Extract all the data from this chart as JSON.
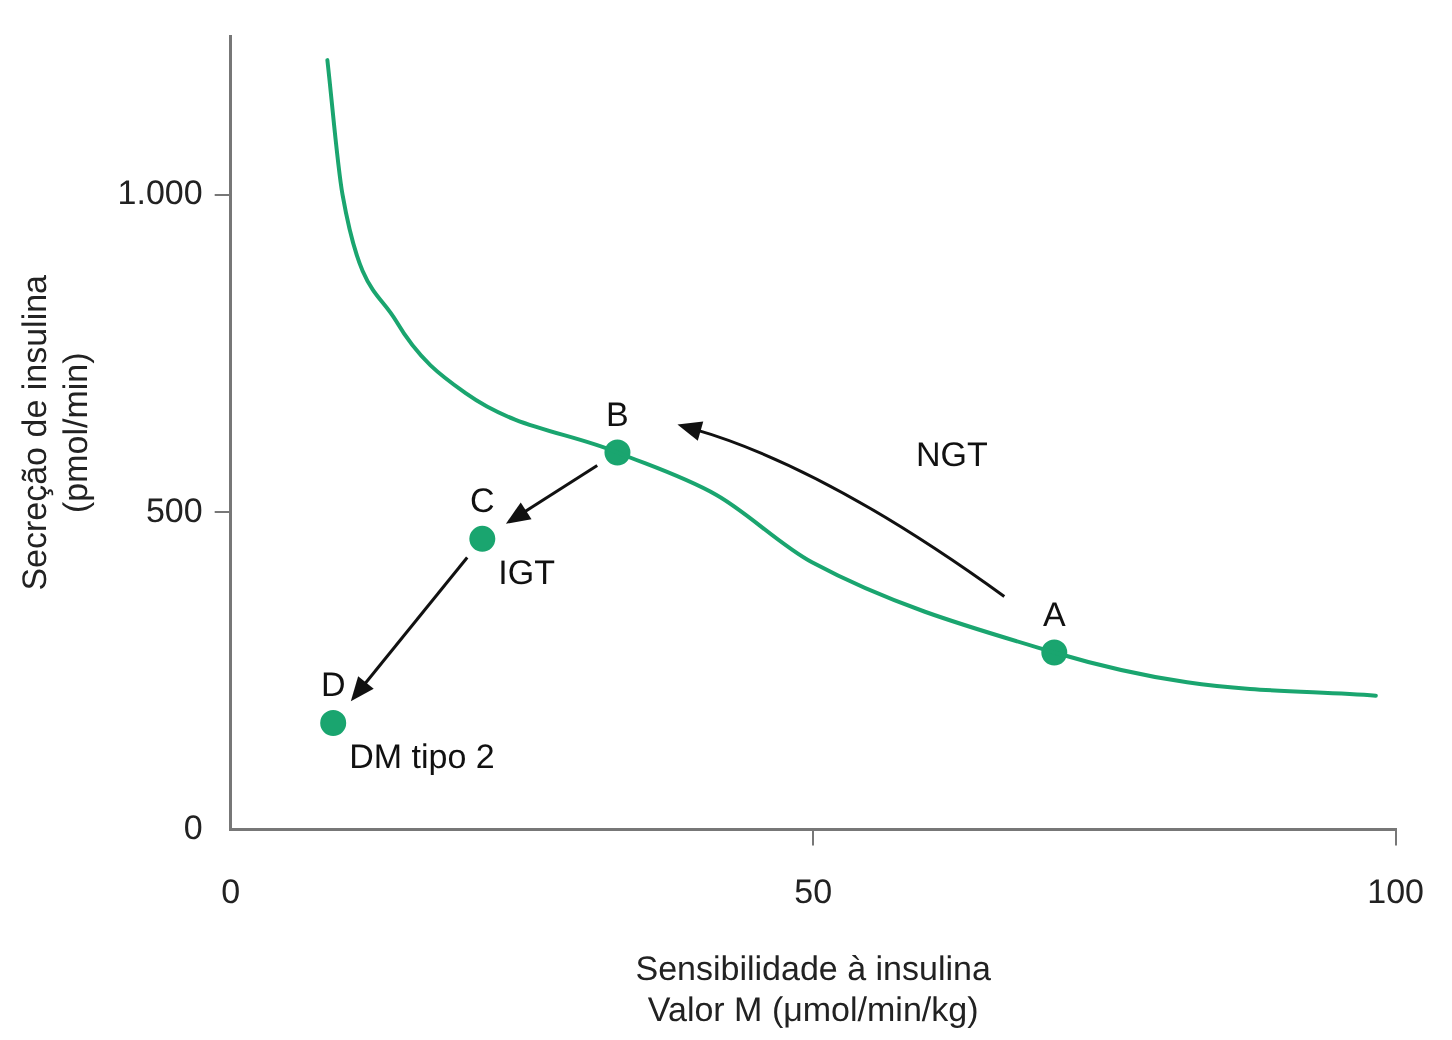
{
  "chart_data": {
    "type": "line",
    "xlabel": "Sensibilidade à insulina\nValor M (μmol/min/kg)",
    "ylabel": "Secreção de insulina\n(pmol/min)",
    "xlim": [
      0,
      100
    ],
    "ylim": [
      0,
      1250
    ],
    "xticks": [
      0,
      50,
      100
    ],
    "yticks": [
      0,
      500,
      {
        "value": 1000,
        "label": "1.000"
      }
    ],
    "grid": false,
    "legend": false,
    "line_style": "solid",
    "series": [
      {
        "color": "#1aa56f",
        "marker": "none",
        "x": [
          8.3,
          9.6,
          14.2,
          20.2,
          33.2,
          41.7,
          49.9,
          70.7,
          82.1,
          98.3
        ],
        "values": [
          1212,
          1000,
          801,
          687,
          594,
          527,
          421,
          279,
          232,
          211
        ]
      },
      {
        "type": "scatter",
        "marker": "circle",
        "color": "#1aa56f",
        "x": [
          70.7,
          33.2,
          21.6,
          8.8
        ],
        "values": [
          279,
          594,
          458,
          168
        ]
      }
    ],
    "annotations": [
      {
        "text": "A",
        "x": 70.7,
        "y": 279
      },
      {
        "text": "B",
        "x": 33.2,
        "y": 594
      },
      {
        "text": "C",
        "x": 21.6,
        "y": 458
      },
      {
        "text": "IGT",
        "x": 21.6,
        "y": 458
      },
      {
        "text": "D",
        "x": 8.8,
        "y": 168
      },
      {
        "text": "DM tipo 2",
        "x": 8.8,
        "y": 168
      },
      "NGT"
    ]
  }
}
